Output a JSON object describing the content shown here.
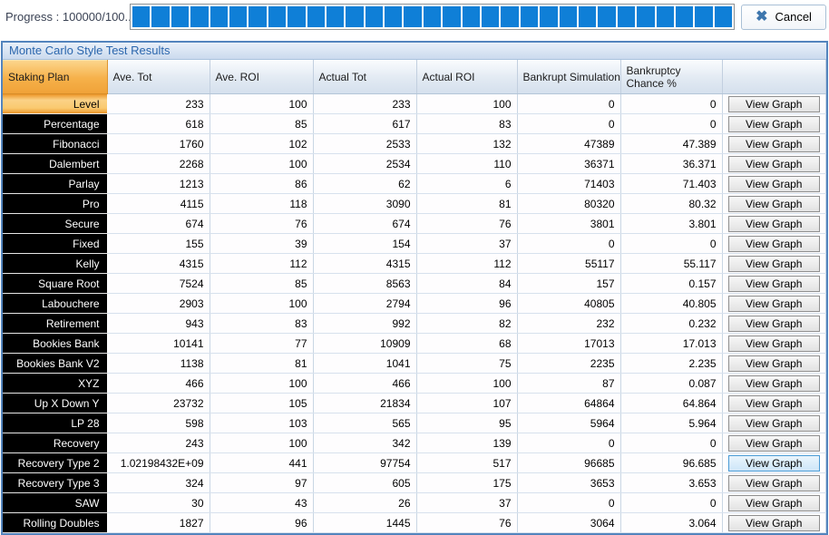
{
  "progress": {
    "label": "Progress : 100000/100...",
    "segments": 31,
    "cancel_label": "Cancel",
    "cancel_icon": "x-icon"
  },
  "panel": {
    "title": "Monte Carlo Style Test Results"
  },
  "table": {
    "headers": [
      "Staking Plan",
      "Ave. Tot",
      "Ave. ROI",
      "Actual Tot",
      "Actual ROI",
      "Bankrupt Simulations",
      "Bankruptcy Chance %",
      ""
    ],
    "view_graph_label": "View Graph",
    "selected_row": 0,
    "focused_button_row": 18,
    "rows": [
      {
        "plan": "Level",
        "ave_tot": "233",
        "ave_roi": "100",
        "actual_tot": "233",
        "actual_roi": "100",
        "bankrupt_sims": "0",
        "bankruptcy_chance": "0"
      },
      {
        "plan": "Percentage",
        "ave_tot": "618",
        "ave_roi": "85",
        "actual_tot": "617",
        "actual_roi": "83",
        "bankrupt_sims": "0",
        "bankruptcy_chance": "0"
      },
      {
        "plan": "Fibonacci",
        "ave_tot": "1760",
        "ave_roi": "102",
        "actual_tot": "2533",
        "actual_roi": "132",
        "bankrupt_sims": "47389",
        "bankruptcy_chance": "47.389"
      },
      {
        "plan": "Dalembert",
        "ave_tot": "2268",
        "ave_roi": "100",
        "actual_tot": "2534",
        "actual_roi": "110",
        "bankrupt_sims": "36371",
        "bankruptcy_chance": "36.371"
      },
      {
        "plan": "Parlay",
        "ave_tot": "1213",
        "ave_roi": "86",
        "actual_tot": "62",
        "actual_roi": "6",
        "bankrupt_sims": "71403",
        "bankruptcy_chance": "71.403"
      },
      {
        "plan": "Pro",
        "ave_tot": "4115",
        "ave_roi": "118",
        "actual_tot": "3090",
        "actual_roi": "81",
        "bankrupt_sims": "80320",
        "bankruptcy_chance": "80.32"
      },
      {
        "plan": "Secure",
        "ave_tot": "674",
        "ave_roi": "76",
        "actual_tot": "674",
        "actual_roi": "76",
        "bankrupt_sims": "3801",
        "bankruptcy_chance": "3.801"
      },
      {
        "plan": "Fixed",
        "ave_tot": "155",
        "ave_roi": "39",
        "actual_tot": "154",
        "actual_roi": "37",
        "bankrupt_sims": "0",
        "bankruptcy_chance": "0"
      },
      {
        "plan": "Kelly",
        "ave_tot": "4315",
        "ave_roi": "112",
        "actual_tot": "4315",
        "actual_roi": "112",
        "bankrupt_sims": "55117",
        "bankruptcy_chance": "55.117"
      },
      {
        "plan": "Square Root",
        "ave_tot": "7524",
        "ave_roi": "85",
        "actual_tot": "8563",
        "actual_roi": "84",
        "bankrupt_sims": "157",
        "bankruptcy_chance": "0.157"
      },
      {
        "plan": "Labouchere",
        "ave_tot": "2903",
        "ave_roi": "100",
        "actual_tot": "2794",
        "actual_roi": "96",
        "bankrupt_sims": "40805",
        "bankruptcy_chance": "40.805"
      },
      {
        "plan": "Retirement",
        "ave_tot": "943",
        "ave_roi": "83",
        "actual_tot": "992",
        "actual_roi": "82",
        "bankrupt_sims": "232",
        "bankruptcy_chance": "0.232"
      },
      {
        "plan": "Bookies Bank",
        "ave_tot": "10141",
        "ave_roi": "77",
        "actual_tot": "10909",
        "actual_roi": "68",
        "bankrupt_sims": "17013",
        "bankruptcy_chance": "17.013"
      },
      {
        "plan": "Bookies Bank V2",
        "ave_tot": "1138",
        "ave_roi": "81",
        "actual_tot": "1041",
        "actual_roi": "75",
        "bankrupt_sims": "2235",
        "bankruptcy_chance": "2.235"
      },
      {
        "plan": "XYZ",
        "ave_tot": "466",
        "ave_roi": "100",
        "actual_tot": "466",
        "actual_roi": "100",
        "bankrupt_sims": "87",
        "bankruptcy_chance": "0.087"
      },
      {
        "plan": "Up X Down Y",
        "ave_tot": "23732",
        "ave_roi": "105",
        "actual_tot": "21834",
        "actual_roi": "107",
        "bankrupt_sims": "64864",
        "bankruptcy_chance": "64.864"
      },
      {
        "plan": "LP 28",
        "ave_tot": "598",
        "ave_roi": "103",
        "actual_tot": "565",
        "actual_roi": "95",
        "bankrupt_sims": "5964",
        "bankruptcy_chance": "5.964"
      },
      {
        "plan": "Recovery",
        "ave_tot": "243",
        "ave_roi": "100",
        "actual_tot": "342",
        "actual_roi": "139",
        "bankrupt_sims": "0",
        "bankruptcy_chance": "0"
      },
      {
        "plan": "Recovery Type 2",
        "ave_tot": "1.02198432E+09",
        "ave_roi": "441",
        "actual_tot": "97754",
        "actual_roi": "517",
        "bankrupt_sims": "96685",
        "bankruptcy_chance": "96.685"
      },
      {
        "plan": "Recovery Type 3",
        "ave_tot": "324",
        "ave_roi": "97",
        "actual_tot": "605",
        "actual_roi": "175",
        "bankrupt_sims": "3653",
        "bankruptcy_chance": "3.653"
      },
      {
        "plan": "SAW",
        "ave_tot": "30",
        "ave_roi": "43",
        "actual_tot": "26",
        "actual_roi": "37",
        "bankrupt_sims": "0",
        "bankruptcy_chance": "0"
      },
      {
        "plan": "Rolling Doubles",
        "ave_tot": "1827",
        "ave_roi": "96",
        "actual_tot": "1445",
        "actual_roi": "76",
        "bankrupt_sims": "3064",
        "bankruptcy_chance": "3.064"
      }
    ]
  },
  "colors": {
    "progress_fill": "#0f7fd7",
    "selection_orange": "#f5a938",
    "header_orange": "#f0a238",
    "focus_blue": "#4a9bd5",
    "panel_border": "#5384bd",
    "plan_cell_bg": "#000000",
    "cancel_x_blue": "#3e76ad"
  }
}
